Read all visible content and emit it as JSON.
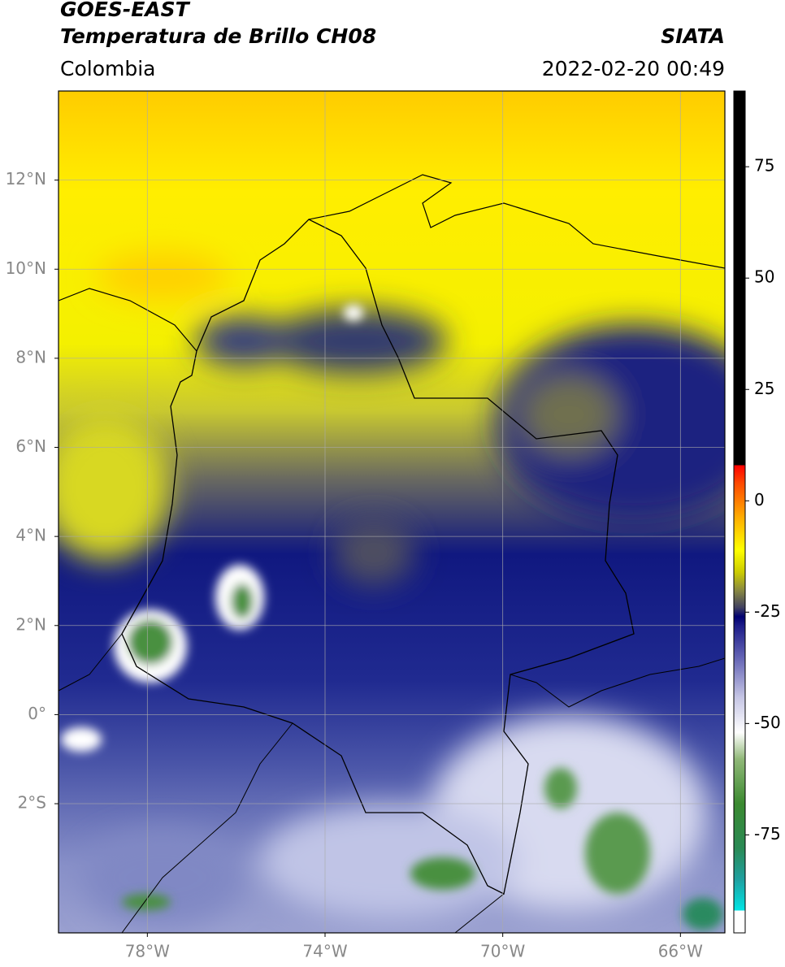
{
  "header": {
    "title": "GOES-EAST",
    "subtitle": "Temperatura de Brillo CH08",
    "agency": "SIATA",
    "region": "Colombia",
    "datetime": "2022-02-20 00:49"
  },
  "map": {
    "lonlim": [
      -80,
      -65
    ],
    "latlim": [
      -4.9,
      14
    ],
    "lon_ticks": [
      {
        "value": -78,
        "label": "78°W"
      },
      {
        "value": -74,
        "label": "74°W"
      },
      {
        "value": -70,
        "label": "70°W"
      },
      {
        "value": -66,
        "label": "66°W"
      }
    ],
    "lat_ticks": [
      {
        "value": 12,
        "label": "12°N"
      },
      {
        "value": 10,
        "label": "10°N"
      },
      {
        "value": 8,
        "label": "8°N"
      },
      {
        "value": 6,
        "label": "6°N"
      },
      {
        "value": 4,
        "label": "4°N"
      },
      {
        "value": 2,
        "label": "2°N"
      },
      {
        "value": 0,
        "label": "0°"
      },
      {
        "value": -2,
        "label": "2°S"
      }
    ],
    "grid": true
  },
  "colorbar": {
    "lim": [
      -97,
      92
    ],
    "ticks": [
      75,
      50,
      25,
      0,
      -25,
      -50,
      -75
    ],
    "stops": [
      {
        "value": -97,
        "color": "#ffffff"
      },
      {
        "value": -92,
        "color": "#ffffff"
      },
      {
        "value": -92,
        "color": "#00e5e5"
      },
      {
        "value": -85,
        "color": "#1fa0a0"
      },
      {
        "value": -78,
        "color": "#2a8a55"
      },
      {
        "value": -68,
        "color": "#3b8a30"
      },
      {
        "value": -58,
        "color": "#90b878"
      },
      {
        "value": -52,
        "color": "#ffffff"
      },
      {
        "value": -44,
        "color": "#c4c4e4"
      },
      {
        "value": -35,
        "color": "#6262b4"
      },
      {
        "value": -28,
        "color": "#1c1c88"
      },
      {
        "value": -26,
        "color": "#000070"
      },
      {
        "value": -24,
        "color": "#404060"
      },
      {
        "value": -20,
        "color": "#8a8a40"
      },
      {
        "value": -16,
        "color": "#cccc00"
      },
      {
        "value": -11,
        "color": "#ffff00"
      },
      {
        "value": -4,
        "color": "#ffb000"
      },
      {
        "value": 4,
        "color": "#ff4800"
      },
      {
        "value": 8,
        "color": "#ff0000"
      },
      {
        "value": 8,
        "color": "#000000"
      },
      {
        "value": 92,
        "color": "#000000"
      }
    ]
  }
}
